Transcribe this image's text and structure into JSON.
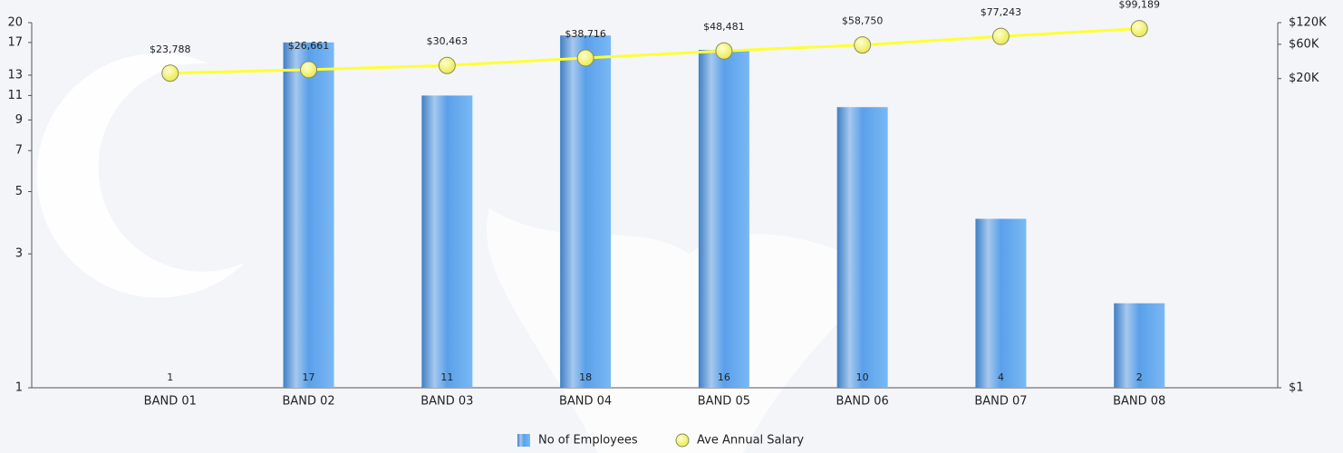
{
  "chart_data": {
    "type": "combo",
    "categories": [
      "BAND 01",
      "BAND 02",
      "BAND 03",
      "BAND 04",
      "BAND 05",
      "BAND 06",
      "BAND 07",
      "BAND 08"
    ],
    "series": [
      {
        "name": "No of Employees",
        "type": "bar",
        "color": "#5a9be6",
        "values": [
          1,
          17,
          11,
          18,
          16,
          10,
          4,
          2
        ]
      },
      {
        "name": "Ave Annual Salary",
        "type": "line",
        "axis": "y2",
        "color": "#ffff33",
        "values": [
          23788,
          26661,
          30463,
          38716,
          48481,
          58750,
          77243,
          99189
        ],
        "value_labels": [
          "$23,788",
          "$26,661",
          "$30,463",
          "$38,716",
          "$48,481",
          "$58,750",
          "$77,243",
          "$99,189"
        ]
      }
    ],
    "ylim": [
      1,
      20
    ],
    "yticks": [
      1,
      3,
      5,
      7,
      9,
      11,
      13,
      17,
      20
    ],
    "ylog": true,
    "y2lim": [
      1,
      120000
    ],
    "y2log": true,
    "y2ticks": [
      {
        "value": 1,
        "label": "$1"
      },
      {
        "value": 20000,
        "label": "$20K"
      },
      {
        "value": 60000,
        "label": "$60K"
      },
      {
        "value": 120000,
        "label": "$120K"
      }
    ]
  }
}
